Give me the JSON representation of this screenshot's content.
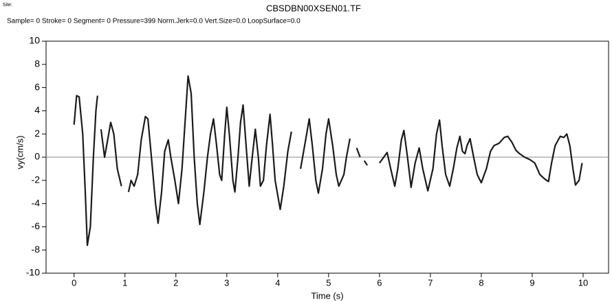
{
  "chart_data": {
    "type": "line",
    "site_label": "Site:",
    "title": "CBSDBN00XSEN01.TF",
    "subtitle": "Sample= 0 Stroke= 0 Segment= 0 Pressure=399 Norm.Jerk=0.0 Vert.Size=0.0 LoopSurface=0.0",
    "x_label": "Time (s)",
    "y_label": "vy(cm/s)",
    "xlim": [
      -0.55,
      10.5
    ],
    "xticks": [
      0,
      1,
      2,
      3,
      4,
      5,
      6,
      7,
      8,
      9,
      10
    ],
    "ylim": [
      -10,
      10
    ],
    "yticks": [
      -10,
      -8,
      -6,
      -4,
      -2,
      0,
      2,
      4,
      6,
      8,
      10
    ],
    "hline": 0,
    "hline_color": "#888888",
    "x": [
      0,
      0.05,
      0.1,
      0.17,
      0.22,
      0.26,
      0.32,
      0.38,
      0.43,
      0.46,
      0.5,
      0.53,
      0.6,
      0.66,
      0.72,
      0.78,
      0.85,
      0.93,
      1.0,
      1.07,
      1.12,
      1.18,
      1.25,
      1.32,
      1.4,
      1.45,
      1.52,
      1.6,
      1.65,
      1.72,
      1.78,
      1.85,
      1.9,
      1.98,
      2.05,
      2.12,
      2.18,
      2.24,
      2.3,
      2.36,
      2.42,
      2.47,
      2.55,
      2.62,
      2.68,
      2.74,
      2.8,
      2.86,
      2.9,
      2.96,
      3.0,
      3.05,
      3.12,
      3.16,
      3.22,
      3.27,
      3.32,
      3.38,
      3.44,
      3.5,
      3.56,
      3.62,
      3.66,
      3.72,
      3.78,
      3.85,
      3.9,
      3.95,
      4.05,
      4.12,
      4.2,
      4.27,
      4.35,
      4.45,
      4.55,
      4.62,
      4.68,
      4.75,
      4.8,
      4.88,
      4.95,
      5.0,
      5.08,
      5.15,
      5.2,
      5.3,
      5.35,
      5.42,
      5.5,
      5.55,
      5.62,
      5.66,
      5.7,
      5.76,
      5.9,
      6.0,
      6.15,
      6.22,
      6.3,
      6.36,
      6.43,
      6.48,
      6.55,
      6.62,
      6.7,
      6.78,
      6.85,
      6.95,
      7.05,
      7.12,
      7.18,
      7.23,
      7.3,
      7.38,
      7.45,
      7.52,
      7.58,
      7.63,
      7.68,
      7.72,
      7.78,
      7.85,
      7.92,
      8.0,
      8.1,
      8.18,
      8.25,
      8.35,
      8.45,
      8.52,
      8.6,
      8.68,
      8.75,
      8.85,
      8.95,
      9.05,
      9.15,
      9.25,
      9.32,
      9.38,
      9.45,
      9.55,
      9.62,
      9.68,
      9.74,
      9.8,
      9.85,
      9.92,
      9.98
    ],
    "series": [
      {
        "name": "vy",
        "color": "#1a1a1a",
        "values": [
          2.8,
          5.3,
          5.2,
          2,
          -3,
          -7.6,
          -6,
          0,
          4,
          5.3,
          null,
          2.4,
          0,
          1.5,
          3,
          2,
          -1,
          -2.5,
          null,
          -3,
          -2,
          -2.5,
          -1.5,
          1.5,
          3.5,
          3.3,
          0,
          -4,
          -5.7,
          -3,
          0.5,
          1.5,
          0,
          -2,
          -4,
          -1,
          3,
          7,
          5.5,
          0,
          -4,
          -5.8,
          -3,
          0,
          2,
          3.3,
          1,
          -1.5,
          -2,
          2,
          4.3,
          2,
          -2,
          -3,
          0,
          3,
          4.5,
          1,
          -2.5,
          0,
          2.4,
          0,
          -2.5,
          -2,
          1,
          3.7,
          1,
          -2,
          -4.5,
          -2.5,
          0.5,
          2.2,
          null,
          -1,
          1.5,
          3.3,
          1,
          -2,
          -3.1,
          -1,
          2,
          3.3,
          1,
          -1.5,
          -2.5,
          -1.5,
          0,
          1.6,
          null,
          0.8,
          0,
          null,
          -0.3,
          -0.7,
          null,
          -0.5,
          0.4,
          -1,
          -2.5,
          -1,
          1.5,
          2.3,
          0,
          -2.6,
          -0.5,
          0.8,
          -1,
          -2.9,
          -1,
          2,
          3.2,
          1,
          -1.5,
          -2.5,
          -1,
          0.8,
          1.8,
          0.5,
          0.3,
          1,
          1.6,
          0,
          -1.5,
          -2.2,
          -1,
          0.5,
          1,
          1.2,
          1.7,
          1.8,
          1.3,
          0.6,
          0.3,
          0,
          -0.2,
          -0.5,
          -1.5,
          -1.9,
          -2.1,
          -0.5,
          1,
          1.8,
          1.7,
          2,
          1,
          -1,
          -2.4,
          -2,
          -0.5
        ]
      }
    ]
  }
}
